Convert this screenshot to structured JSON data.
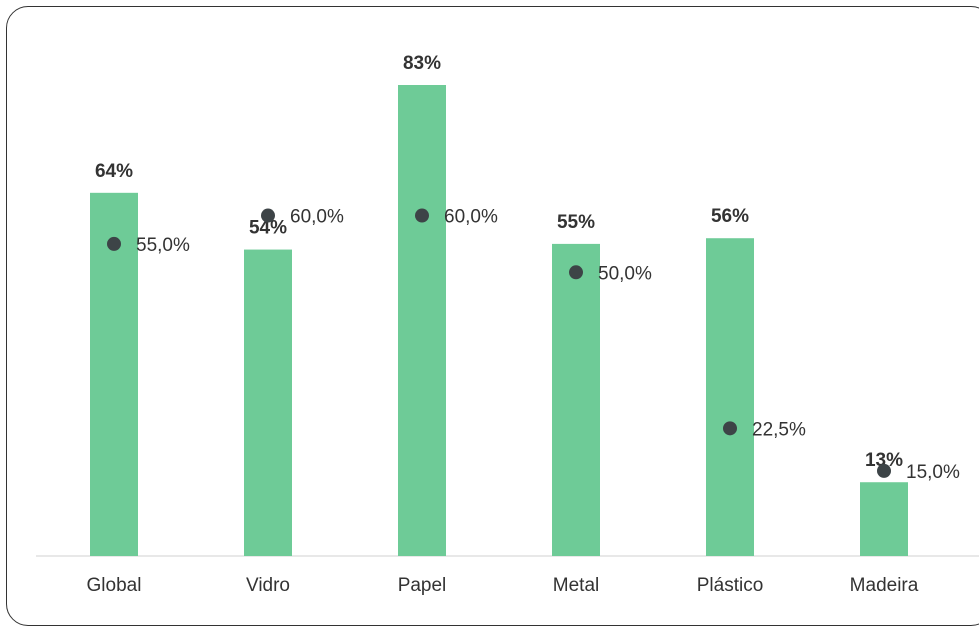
{
  "chart_data": {
    "type": "bar",
    "categories": [
      "Global",
      "Vidro",
      "Papel",
      "Metal",
      "Plástico",
      "Madeira"
    ],
    "series": [
      {
        "type": "bar",
        "values": [
          64,
          54,
          83,
          55,
          56,
          13
        ],
        "labels": [
          "64%",
          "54%",
          "83%",
          "55%",
          "56%",
          "13%"
        ],
        "color": "#6ECB97"
      },
      {
        "type": "scatter",
        "values": [
          55.0,
          60.0,
          60.0,
          50.0,
          22.5,
          15.0
        ],
        "labels": [
          "55,0%",
          "60,0%",
          "60,0%",
          "50,0%",
          "22,5%",
          "15,0%"
        ],
        "color": "#3D4447"
      }
    ],
    "ylim": [
      0,
      88
    ],
    "grid": false,
    "legend": "none"
  }
}
